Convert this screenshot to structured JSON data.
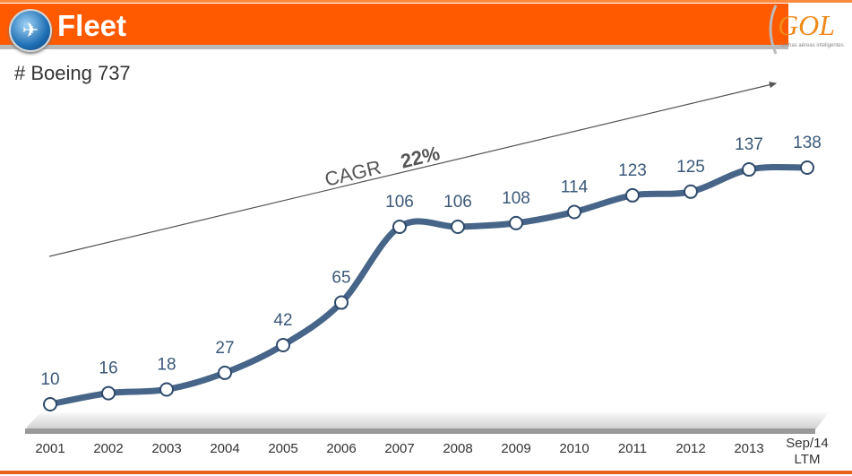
{
  "header": {
    "title": "Fleet",
    "logo": "GOL",
    "logo_tagline": "Linhas aéreas inteligentes"
  },
  "subtitle": "# Boeing 737",
  "chart_data": {
    "type": "line",
    "title": "# Boeing 737",
    "categories": [
      "2001",
      "2002",
      "2003",
      "2004",
      "2005",
      "2006",
      "2007",
      "2008",
      "2009",
      "2010",
      "2011",
      "2012",
      "2013",
      "Sep/14 LTM"
    ],
    "values": [
      10,
      16,
      18,
      27,
      42,
      65,
      106,
      106,
      108,
      114,
      123,
      125,
      137,
      138
    ],
    "annotation": {
      "label": "CAGR",
      "value": "22%"
    },
    "xlabel": "",
    "ylabel": "",
    "ylim": [
      0,
      150
    ],
    "grid": false,
    "line_color": "#466588"
  }
}
